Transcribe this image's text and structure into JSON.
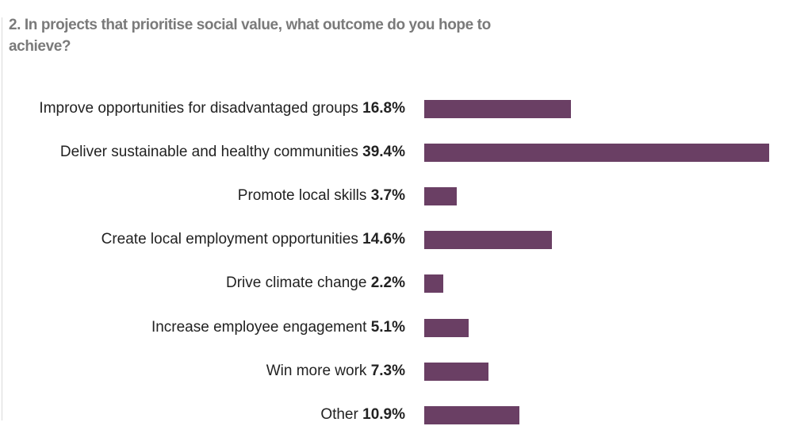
{
  "title": "2. In projects that prioritise social value, what outcome do you hope to achieve?",
  "colors": {
    "bar": "#6a3f64",
    "title": "#7a7a7a",
    "label": "#222222"
  },
  "chart_data": {
    "type": "bar",
    "orientation": "horizontal",
    "title": "2. In projects that prioritise social value, what outcome do you hope to achieve?",
    "xlabel": "",
    "ylabel": "",
    "grid": false,
    "legend": null,
    "categories": [
      "Improve opportunities for disadvantaged groups",
      "Deliver sustainable and healthy communities",
      "Promote local skills",
      "Create local employment opportunities",
      "Drive climate change",
      "Increase employee engagement",
      "Win more work",
      "Other"
    ],
    "values": [
      16.8,
      39.4,
      3.7,
      14.6,
      2.2,
      5.1,
      7.3,
      10.9
    ],
    "value_labels": [
      "16.8%",
      "39.4%",
      "3.7%",
      "14.6%",
      "2.2%",
      "5.1%",
      "7.3%",
      "10.9%"
    ],
    "unit": "%",
    "xlim": [
      0,
      39.4
    ]
  }
}
